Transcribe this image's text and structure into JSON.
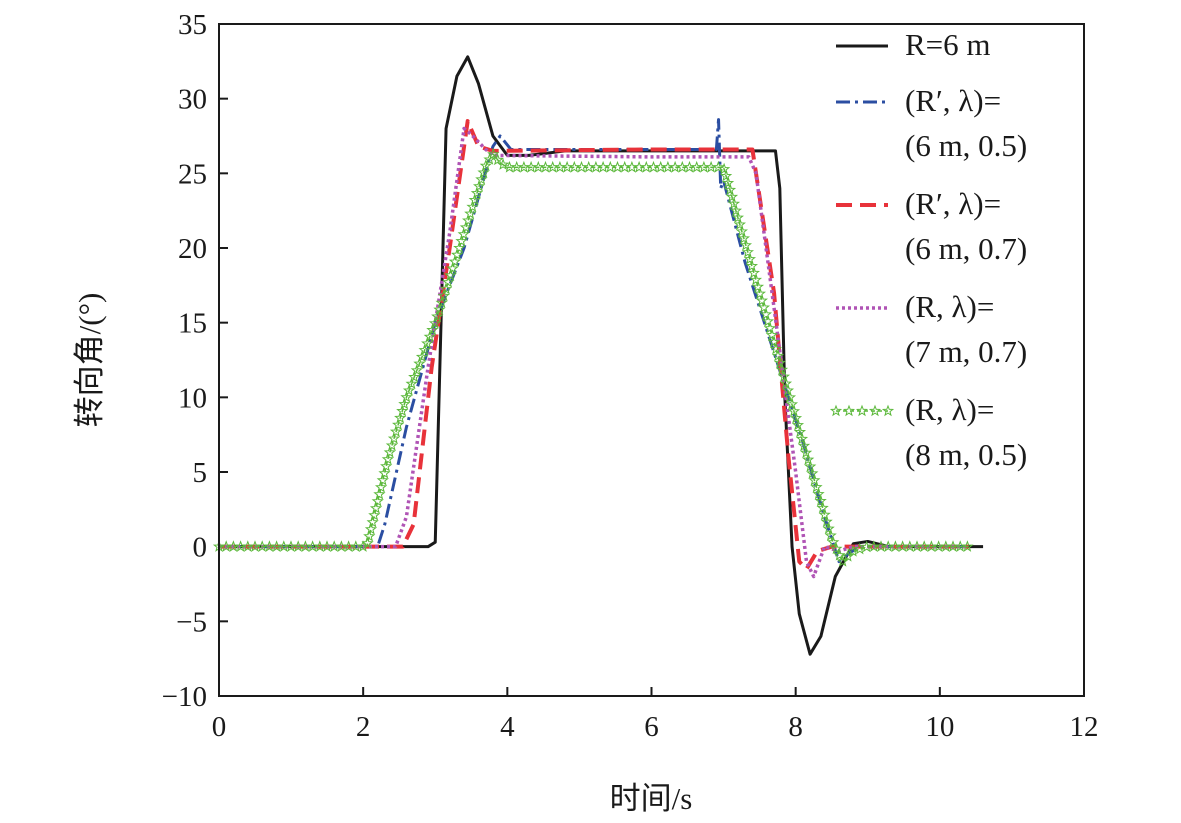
{
  "chart_data": {
    "type": "line",
    "xlabel": "时间/s",
    "ylabel": "转向角/(°)",
    "xlim": [
      0,
      12
    ],
    "ylim": [
      -10,
      35
    ],
    "x_ticks": [
      0,
      2,
      4,
      6,
      8,
      10,
      12
    ],
    "y_ticks": [
      -10,
      -5,
      0,
      5,
      10,
      15,
      20,
      25,
      30,
      35
    ],
    "x_tick_labels": [
      "0",
      "2",
      "4",
      "6",
      "8",
      "10",
      "12"
    ],
    "y_tick_labels": [
      "−10",
      "−5",
      "0",
      "5",
      "10",
      "15",
      "20",
      "25",
      "30",
      "35"
    ],
    "grid": false,
    "legend_position": "top-right",
    "series": [
      {
        "name": "R=6 m",
        "legend_lines": [
          "R=6 m"
        ],
        "color": "#1a1a1a",
        "style": "solid",
        "points": [
          [
            0,
            0
          ],
          [
            2.9,
            0
          ],
          [
            3.0,
            0.3
          ],
          [
            3.08,
            15
          ],
          [
            3.15,
            28
          ],
          [
            3.3,
            31.5
          ],
          [
            3.45,
            32.8
          ],
          [
            3.6,
            31
          ],
          [
            3.8,
            27.5
          ],
          [
            4.0,
            26.2
          ],
          [
            4.3,
            26.2
          ],
          [
            4.8,
            26.5
          ],
          [
            6.0,
            26.5
          ],
          [
            7.0,
            26.5
          ],
          [
            7.72,
            26.5
          ],
          [
            7.78,
            24
          ],
          [
            7.85,
            10
          ],
          [
            7.95,
            0
          ],
          [
            8.05,
            -4.5
          ],
          [
            8.2,
            -7.2
          ],
          [
            8.35,
            -6
          ],
          [
            8.55,
            -2
          ],
          [
            8.8,
            0.2
          ],
          [
            9.0,
            0.35
          ],
          [
            9.3,
            0
          ],
          [
            10.6,
            0
          ]
        ]
      },
      {
        "name": "(R′, λ)=(6 m, 0.5)",
        "legend_lines": [
          "(R′, λ)=",
          "(6 m, 0.5)"
        ],
        "color": "#2b4ea2",
        "style": "dashdot",
        "points": [
          [
            0,
            0
          ],
          [
            2.2,
            0
          ],
          [
            2.3,
            1.5
          ],
          [
            2.6,
            8
          ],
          [
            3.0,
            15
          ],
          [
            3.4,
            20
          ],
          [
            3.8,
            26.8
          ],
          [
            3.9,
            27.5
          ],
          [
            4.05,
            26.6
          ],
          [
            6.0,
            26.6
          ],
          [
            6.9,
            26.6
          ],
          [
            6.93,
            28.6
          ],
          [
            6.96,
            24
          ],
          [
            7.0,
            24.5
          ],
          [
            7.3,
            19
          ],
          [
            7.7,
            13
          ],
          [
            8.1,
            7
          ],
          [
            8.4,
            2
          ],
          [
            8.6,
            -1
          ],
          [
            8.75,
            -0.4
          ],
          [
            8.9,
            0
          ],
          [
            10.4,
            0
          ]
        ]
      },
      {
        "name": "(R′, λ)=(6 m, 0.7)",
        "legend_lines": [
          "(R′, λ)=",
          "(6 m, 0.7)"
        ],
        "color": "#e8323a",
        "style": "dash",
        "points": [
          [
            0,
            0
          ],
          [
            2.55,
            0
          ],
          [
            2.7,
            1.5
          ],
          [
            2.95,
            12
          ],
          [
            3.2,
            20
          ],
          [
            3.45,
            28.5
          ],
          [
            3.6,
            26.8
          ],
          [
            3.8,
            26.5
          ],
          [
            6.0,
            26.6
          ],
          [
            7.3,
            26.6
          ],
          [
            7.4,
            26.6
          ],
          [
            7.7,
            17
          ],
          [
            7.9,
            6
          ],
          [
            8.05,
            -1
          ],
          [
            8.15,
            -1.5
          ],
          [
            8.3,
            -0.3
          ],
          [
            8.5,
            0
          ],
          [
            10.4,
            0
          ]
        ]
      },
      {
        "name": "(R, λ)=(7 m, 0.7)",
        "legend_lines": [
          "(R, λ)=",
          "(7 m, 0.7)"
        ],
        "color": "#b054b5",
        "style": "dot",
        "points": [
          [
            0,
            0
          ],
          [
            2.45,
            0
          ],
          [
            2.6,
            2
          ],
          [
            2.9,
            12
          ],
          [
            3.2,
            21
          ],
          [
            3.4,
            28
          ],
          [
            3.5,
            27.6
          ],
          [
            3.7,
            26.6
          ],
          [
            3.8,
            26.2
          ],
          [
            6.0,
            26.1
          ],
          [
            7.35,
            26.1
          ],
          [
            7.45,
            25
          ],
          [
            7.7,
            16
          ],
          [
            8.0,
            5
          ],
          [
            8.15,
            -1
          ],
          [
            8.25,
            -2
          ],
          [
            8.4,
            0
          ],
          [
            8.6,
            -0.3
          ],
          [
            8.8,
            0
          ],
          [
            10.4,
            0
          ]
        ]
      },
      {
        "name": "(R, λ)=(8 m, 0.5)",
        "legend_lines": [
          "(R, λ)=",
          "(8 m, 0.5)"
        ],
        "color": "#5bb83a",
        "style": "star-dash",
        "points": [
          [
            0,
            0
          ],
          [
            2.05,
            0
          ],
          [
            2.15,
            2
          ],
          [
            2.35,
            6
          ],
          [
            2.6,
            10
          ],
          [
            3.0,
            15
          ],
          [
            3.4,
            21
          ],
          [
            3.7,
            25.5
          ],
          [
            3.8,
            26.3
          ],
          [
            3.9,
            25.7
          ],
          [
            4.0,
            25.4
          ],
          [
            6.0,
            25.4
          ],
          [
            7.0,
            25.4
          ],
          [
            7.2,
            22
          ],
          [
            7.5,
            17
          ],
          [
            7.8,
            12
          ],
          [
            8.1,
            7
          ],
          [
            8.35,
            3
          ],
          [
            8.5,
            0.5
          ],
          [
            8.65,
            -1
          ],
          [
            8.8,
            -0.3
          ],
          [
            9.0,
            0
          ],
          [
            10.4,
            0
          ]
        ]
      }
    ]
  }
}
